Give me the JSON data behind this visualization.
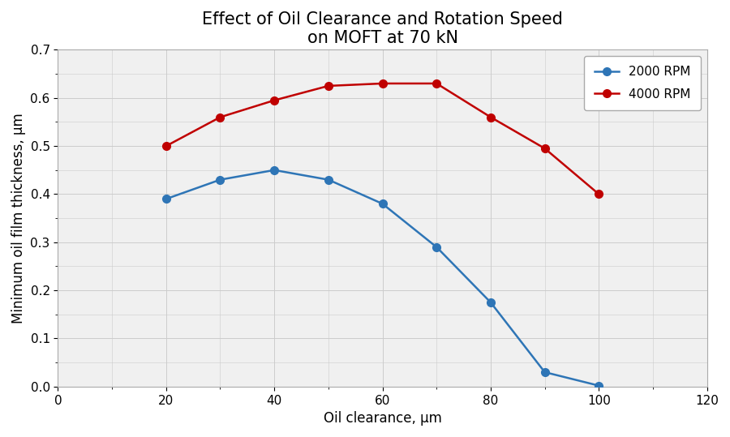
{
  "title": "Effect of Oil Clearance and Rotation Speed\non MOFT at 70 kN",
  "xlabel": "Oil clearance, μm",
  "ylabel": "Minimum oil film thickness, μm",
  "xlim": [
    0,
    120
  ],
  "ylim": [
    0,
    0.7
  ],
  "xticks": [
    0,
    20,
    40,
    60,
    80,
    100,
    120
  ],
  "yticks": [
    0,
    0.1,
    0.2,
    0.3,
    0.4,
    0.5,
    0.6,
    0.7
  ],
  "series": [
    {
      "label": "2000 RPM",
      "color": "#2E75B6",
      "x": [
        20,
        30,
        40,
        50,
        60,
        70,
        80,
        90,
        100
      ],
      "y": [
        0.39,
        0.43,
        0.45,
        0.43,
        0.38,
        0.29,
        0.175,
        0.03,
        0.002
      ]
    },
    {
      "label": "4000 RPM",
      "color": "#C00000",
      "x": [
        20,
        30,
        40,
        50,
        60,
        70,
        80,
        90,
        100
      ],
      "y": [
        0.5,
        0.56,
        0.595,
        0.625,
        0.63,
        0.63,
        0.56,
        0.495,
        0.4
      ]
    }
  ],
  "title_fontsize": 15,
  "axis_label_fontsize": 12,
  "tick_fontsize": 11,
  "legend_fontsize": 11,
  "outer_bg_color": "#FFFFFF",
  "plot_bg_color": "#F0F0F0",
  "grid_color": "#CCCCCC",
  "marker": "o",
  "marker_size": 7,
  "linewidth": 1.8
}
